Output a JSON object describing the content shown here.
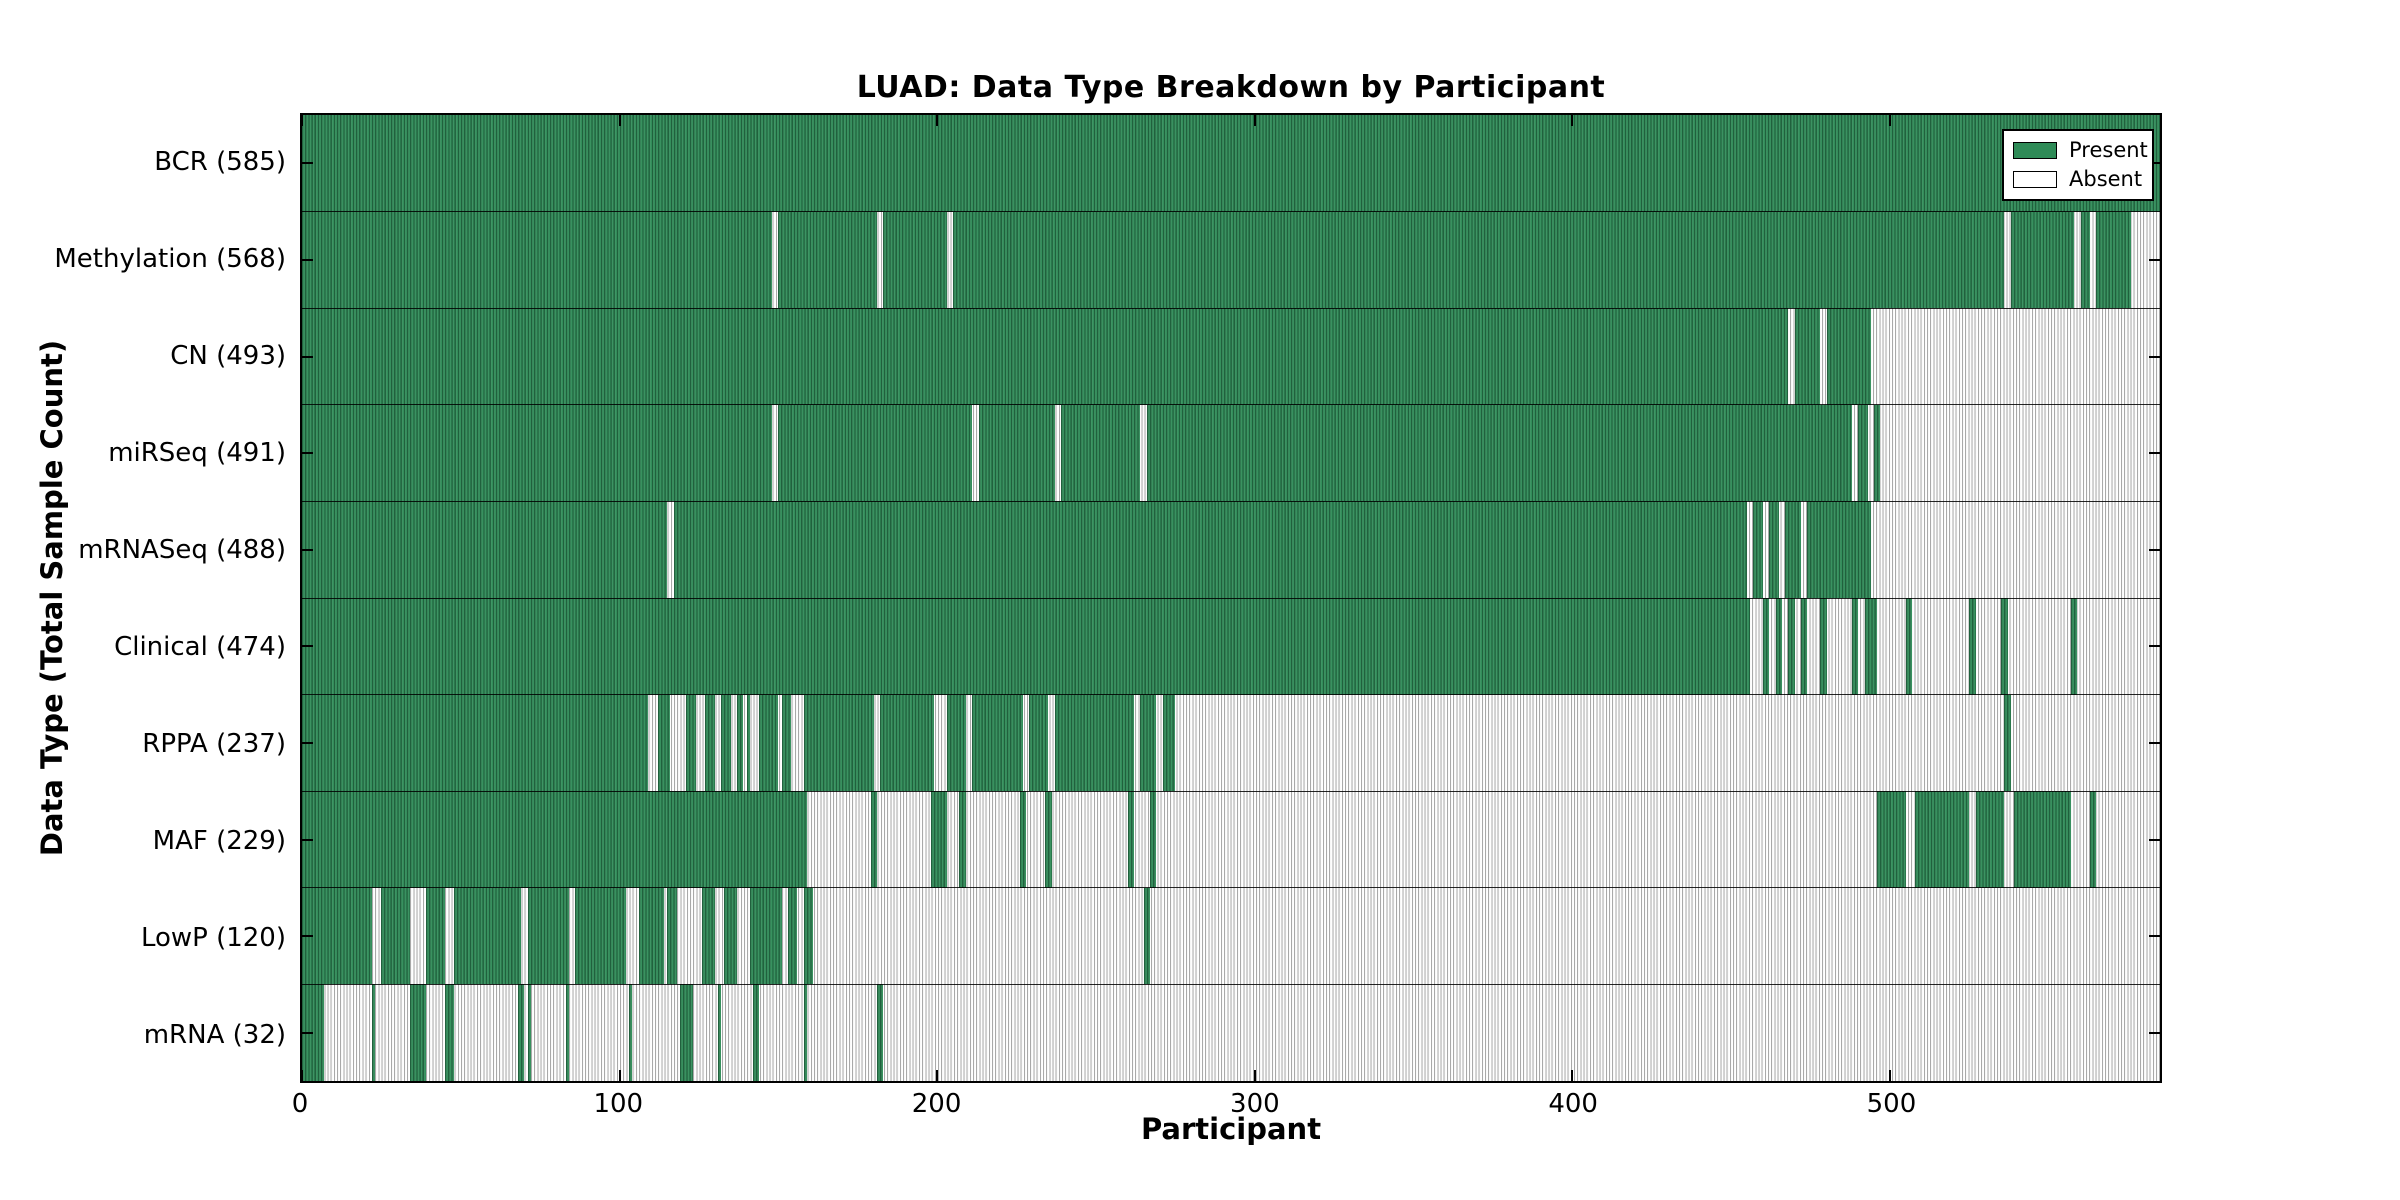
{
  "chart_data": {
    "type": "heatmap",
    "title": "LUAD: Data Type Breakdown by Participant",
    "xlabel": "Participant",
    "ylabel": "Data Type (Total Sample Count)",
    "x_ticks": [
      0,
      100,
      200,
      300,
      400,
      500
    ],
    "x_range": [
      0,
      585
    ],
    "grid": false,
    "legend": {
      "position": "upper right",
      "entries": [
        {
          "label": "Present",
          "color": "#2e8b57"
        },
        {
          "label": "Absent",
          "color": "#ffffff"
        }
      ]
    },
    "colors": {
      "present_fill": "#2e8b57",
      "present_edge": "#1d5c3a",
      "absent_fill": "#ffffff",
      "absent_edge": "#a9a9a9",
      "axis": "#000000"
    },
    "rows": [
      {
        "label": "BCR (585)",
        "total": 585,
        "present_segments": [
          [
            0,
            585
          ]
        ]
      },
      {
        "label": "Methylation (568)",
        "total": 568,
        "present_segments": [
          [
            0,
            148
          ],
          [
            150,
            181
          ],
          [
            183,
            203
          ],
          [
            205,
            536
          ],
          [
            538,
            558
          ],
          [
            560,
            563
          ],
          [
            565,
            576
          ]
        ]
      },
      {
        "label": "CN (493)",
        "total": 493,
        "present_segments": [
          [
            0,
            468
          ],
          [
            470,
            478
          ],
          [
            480,
            494
          ]
        ]
      },
      {
        "label": "miRSeq (491)",
        "total": 491,
        "present_segments": [
          [
            0,
            148
          ],
          [
            150,
            211
          ],
          [
            213,
            237
          ],
          [
            239,
            264
          ],
          [
            266,
            488
          ],
          [
            490,
            493
          ],
          [
            495,
            497
          ]
        ]
      },
      {
        "label": "mRNASeq (488)",
        "total": 488,
        "present_segments": [
          [
            0,
            115
          ],
          [
            117,
            455
          ],
          [
            457,
            460
          ],
          [
            462,
            465
          ],
          [
            467,
            472
          ],
          [
            474,
            494
          ]
        ]
      },
      {
        "label": "Clinical (474)",
        "total": 474,
        "present_segments": [
          [
            0,
            456
          ],
          [
            460,
            462
          ],
          [
            464,
            466
          ],
          [
            468,
            470
          ],
          [
            472,
            474
          ],
          [
            478,
            480
          ],
          [
            488,
            490
          ],
          [
            492,
            496
          ],
          [
            505,
            507
          ],
          [
            525,
            527
          ],
          [
            535,
            537
          ],
          [
            557,
            559
          ]
        ]
      },
      {
        "label": "RPPA (237)",
        "total": 237,
        "present_segments": [
          [
            0,
            109
          ],
          [
            112,
            116
          ],
          [
            121,
            124
          ],
          [
            127,
            130
          ],
          [
            132,
            135
          ],
          [
            137,
            139
          ],
          [
            140,
            141
          ],
          [
            144,
            150
          ],
          [
            151,
            154
          ],
          [
            158,
            180
          ],
          [
            182,
            199
          ],
          [
            203,
            209
          ],
          [
            211,
            227
          ],
          [
            229,
            235
          ],
          [
            237,
            262
          ],
          [
            264,
            269
          ],
          [
            271,
            275
          ],
          [
            536,
            538
          ]
        ]
      },
      {
        "label": "MAF (229)",
        "total": 229,
        "present_segments": [
          [
            0,
            159
          ],
          [
            179,
            181
          ],
          [
            198,
            203
          ],
          [
            207,
            209
          ],
          [
            226,
            228
          ],
          [
            234,
            236
          ],
          [
            260,
            262
          ],
          [
            267,
            269
          ],
          [
            496,
            505
          ],
          [
            508,
            525
          ],
          [
            527,
            536
          ],
          [
            539,
            557
          ],
          [
            563,
            565
          ]
        ]
      },
      {
        "label": "LowP (120)",
        "total": 120,
        "present_segments": [
          [
            0,
            22
          ],
          [
            25,
            34
          ],
          [
            39,
            45
          ],
          [
            48,
            69
          ],
          [
            71,
            84
          ],
          [
            86,
            102
          ],
          [
            106,
            114
          ],
          [
            115,
            118
          ],
          [
            126,
            130
          ],
          [
            133,
            137
          ],
          [
            141,
            151
          ],
          [
            153,
            156
          ],
          [
            158,
            161
          ],
          [
            265,
            267
          ]
        ]
      },
      {
        "label": "mRNA (32)",
        "total": 32,
        "present_segments": [
          [
            0,
            7
          ],
          [
            22,
            23
          ],
          [
            34,
            39
          ],
          [
            45,
            48
          ],
          [
            68,
            70
          ],
          [
            71,
            72
          ],
          [
            83,
            84
          ],
          [
            103,
            104
          ],
          [
            119,
            123
          ],
          [
            131,
            132
          ],
          [
            142,
            144
          ],
          [
            158,
            159
          ],
          [
            181,
            183
          ]
        ]
      }
    ]
  }
}
